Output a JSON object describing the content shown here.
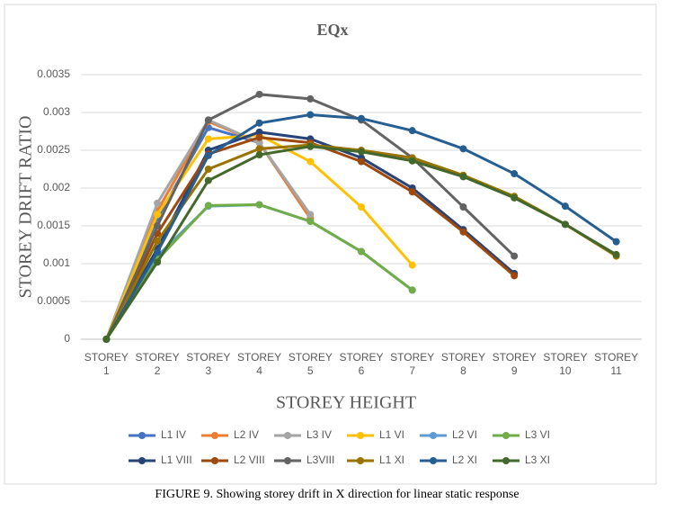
{
  "chart_data": {
    "type": "line",
    "title": "EQx",
    "xlabel": "STOREY HEIGHT",
    "ylabel": "STOREY DRIFT RATIO",
    "caption": "FIGURE 9. Showing storey drift in X direction for linear static response",
    "categories": [
      "STOREY 1",
      "STOREY 2",
      "STOREY 3",
      "STOREY 4",
      "STOREY 5",
      "STOREY 6",
      "STOREY 7",
      "STOREY 8",
      "STOREY 9",
      "STOREY 10",
      "STOREY 11"
    ],
    "ylim": [
      0,
      0.0035
    ],
    "yticks": [
      0,
      0.0005,
      0.001,
      0.0015,
      0.002,
      0.0025,
      0.003,
      0.0035
    ],
    "grid": true,
    "legend": "bottom",
    "series": [
      {
        "name": "L1 IV",
        "color": "#4472c4",
        "values": [
          0,
          0.0016,
          0.0028,
          0.0026,
          0.0016,
          null,
          null,
          null,
          null,
          null,
          null
        ]
      },
      {
        "name": "L2 IV",
        "color": "#ed7d31",
        "values": [
          0,
          0.0017,
          0.00288,
          0.0026,
          0.0016,
          null,
          null,
          null,
          null,
          null,
          null
        ]
      },
      {
        "name": "L3 IV",
        "color": "#a5a5a5",
        "values": [
          0,
          0.0018,
          0.0029,
          0.0026,
          0.00165,
          null,
          null,
          null,
          null,
          null,
          null
        ]
      },
      {
        "name": "L1 VI",
        "color": "#ffc000",
        "values": [
          0,
          0.00165,
          0.00265,
          0.0027,
          0.00235,
          0.00175,
          0.00098,
          null,
          null,
          null,
          null
        ]
      },
      {
        "name": "L2 VI",
        "color": "#5b9bd5",
        "values": [
          0,
          0.0011,
          0.00176,
          0.00178,
          0.00156,
          0.00116,
          0.00065,
          null,
          null,
          null,
          null
        ]
      },
      {
        "name": "L3 VI",
        "color": "#70ad47",
        "values": [
          0,
          0.00105,
          0.00177,
          0.00178,
          0.00156,
          0.00116,
          0.00065,
          null,
          null,
          null,
          null
        ]
      },
      {
        "name": "L1 VIII",
        "color": "#264478",
        "values": [
          0,
          0.0012,
          0.0025,
          0.00274,
          0.00265,
          0.0024,
          0.002,
          0.00145,
          0.00087,
          null,
          null
        ]
      },
      {
        "name": "L2 VIII",
        "color": "#9e480e",
        "values": [
          0,
          0.0014,
          0.00245,
          0.00267,
          0.0026,
          0.00235,
          0.00195,
          0.00142,
          0.00084,
          null,
          null
        ]
      },
      {
        "name": "L3VIII",
        "color": "#636363",
        "values": [
          0,
          0.0015,
          0.0029,
          0.00324,
          0.00318,
          0.0029,
          0.0024,
          0.00175,
          0.0011,
          null,
          null
        ]
      },
      {
        "name": "L1 XI",
        "color": "#997300",
        "values": [
          0,
          0.0013,
          0.00225,
          0.00252,
          0.00257,
          0.0025,
          0.0024,
          0.00217,
          0.00189,
          0.00152,
          0.0011
        ]
      },
      {
        "name": "L2 XI",
        "color": "#255e91",
        "values": [
          0,
          0.00115,
          0.00243,
          0.00286,
          0.00297,
          0.00292,
          0.00276,
          0.00252,
          0.00219,
          0.00176,
          0.00129
        ]
      },
      {
        "name": "L3 XI",
        "color": "#43682b",
        "values": [
          0,
          0.00102,
          0.0021,
          0.00244,
          0.00255,
          0.00248,
          0.00236,
          0.00215,
          0.00187,
          0.00152,
          0.00112
        ]
      }
    ]
  }
}
